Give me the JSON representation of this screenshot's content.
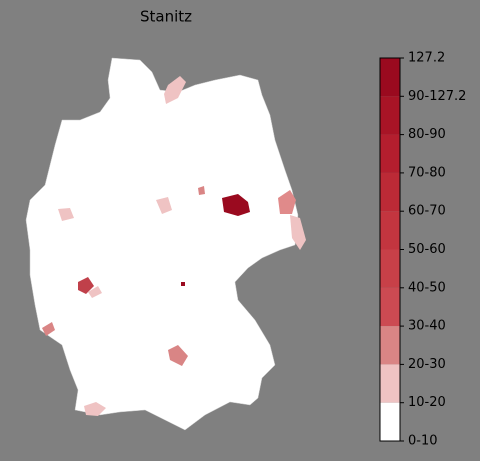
{
  "map": {
    "title": "Stanitz",
    "legend": {
      "labels": [
        "127.2",
        "90-127.2",
        "80-90",
        "70-80",
        "60-70",
        "50-60",
        "40-50",
        "30-40",
        "20-30",
        "10-20",
        "0-10"
      ],
      "colors": [
        "#9a0a1f",
        "#a81426",
        "#b41e2e",
        "#bc2a36",
        "#c3353f",
        "#c84048",
        "#cc4a52",
        "#d98585",
        "#efc3c3",
        "#ffffff"
      ]
    }
  }
}
